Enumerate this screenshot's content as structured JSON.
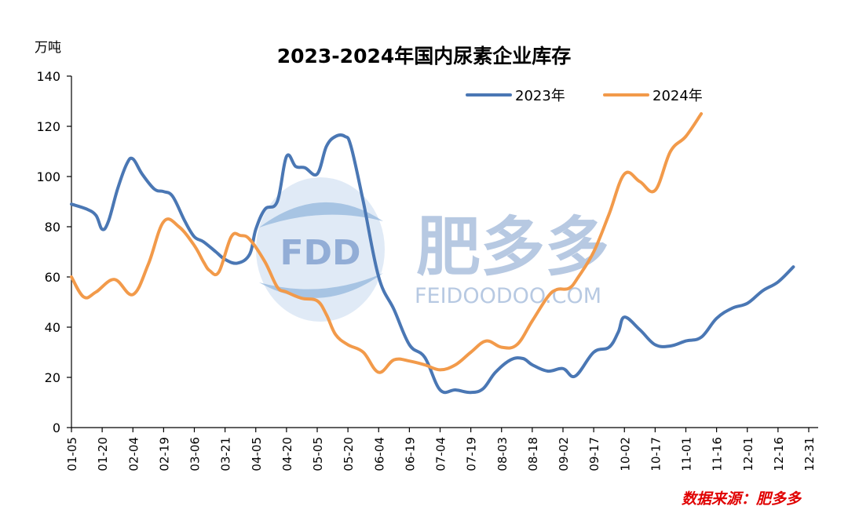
{
  "chart_data": {
    "type": "line",
    "title": "2023-2024年国内尿素企业库存",
    "ylabel": "万吨",
    "ylim": [
      0,
      140
    ],
    "yticks": [
      0,
      20,
      40,
      60,
      80,
      100,
      120,
      140
    ],
    "x_tick_labels": [
      "01-05",
      "01-20",
      "02-04",
      "02-19",
      "03-06",
      "03-21",
      "04-05",
      "04-20",
      "05-05",
      "05-20",
      "06-04",
      "06-19",
      "07-04",
      "07-19",
      "08-03",
      "08-18",
      "09-02",
      "09-17",
      "10-02",
      "10-17",
      "11-01",
      "11-16",
      "12-01",
      "12-16",
      "12-31"
    ],
    "legend_position": "top-right",
    "grid": false,
    "series": [
      {
        "name": "2023年",
        "color": "#4a77b4",
        "points": [
          [
            0,
            89
          ],
          [
            0.5,
            87
          ],
          [
            0.8,
            84.5
          ],
          [
            1,
            79
          ],
          [
            1.2,
            82
          ],
          [
            1.5,
            95
          ],
          [
            1.8,
            105
          ],
          [
            2,
            107
          ],
          [
            2.3,
            101
          ],
          [
            2.7,
            95
          ],
          [
            3,
            94
          ],
          [
            3.3,
            92
          ],
          [
            3.7,
            82
          ],
          [
            4,
            76
          ],
          [
            4.3,
            74
          ],
          [
            4.7,
            70
          ],
          [
            5,
            67
          ],
          [
            5.4,
            65.5
          ],
          [
            5.8,
            69
          ],
          [
            6,
            79
          ],
          [
            6.3,
            87
          ],
          [
            6.7,
            90
          ],
          [
            7,
            108
          ],
          [
            7.3,
            104
          ],
          [
            7.6,
            103.5
          ],
          [
            8,
            101
          ],
          [
            8.3,
            112
          ],
          [
            8.6,
            116
          ],
          [
            8.9,
            116
          ],
          [
            9.1,
            112
          ],
          [
            9.5,
            90
          ],
          [
            10,
            60
          ],
          [
            10.5,
            47
          ],
          [
            11,
            33
          ],
          [
            11.5,
            28
          ],
          [
            12,
            15
          ],
          [
            12.5,
            15
          ],
          [
            13,
            14
          ],
          [
            13.4,
            15.5
          ],
          [
            13.8,
            22
          ],
          [
            14.3,
            27
          ],
          [
            14.7,
            27.5
          ],
          [
            15,
            25
          ],
          [
            15.5,
            22.5
          ],
          [
            16,
            23.5
          ],
          [
            16.4,
            20.5
          ],
          [
            17,
            30
          ],
          [
            17.5,
            32
          ],
          [
            17.8,
            38
          ],
          [
            18,
            44
          ],
          [
            18.5,
            39
          ],
          [
            19,
            33
          ],
          [
            19.5,
            32.5
          ],
          [
            20,
            34.5
          ],
          [
            20.5,
            36
          ],
          [
            21,
            43.5
          ],
          [
            21.5,
            47.5
          ],
          [
            22,
            49.5
          ],
          [
            22.5,
            54.5
          ],
          [
            23,
            58
          ],
          [
            23.5,
            64
          ]
        ]
      },
      {
        "name": "2024年",
        "color": "#f29a4a",
        "points": [
          [
            0,
            60
          ],
          [
            0.4,
            52
          ],
          [
            0.8,
            54
          ],
          [
            1.4,
            59
          ],
          [
            2,
            53
          ],
          [
            2.5,
            65
          ],
          [
            3,
            82
          ],
          [
            3.5,
            80
          ],
          [
            4,
            72.5
          ],
          [
            4.3,
            66
          ],
          [
            4.5,
            62.5
          ],
          [
            4.8,
            62
          ],
          [
            5.2,
            76
          ],
          [
            5.5,
            76.5
          ],
          [
            5.8,
            75
          ],
          [
            6.3,
            66
          ],
          [
            6.7,
            56
          ],
          [
            7,
            54
          ],
          [
            7.5,
            51.5
          ],
          [
            8,
            50.5
          ],
          [
            8.3,
            45
          ],
          [
            8.6,
            37
          ],
          [
            9,
            33
          ],
          [
            9.5,
            30
          ],
          [
            10,
            22
          ],
          [
            10.5,
            27
          ],
          [
            11,
            26.5
          ],
          [
            11.5,
            25
          ],
          [
            12,
            23
          ],
          [
            12.5,
            25
          ],
          [
            13,
            30
          ],
          [
            13.5,
            34.5
          ],
          [
            14,
            32
          ],
          [
            14.5,
            33
          ],
          [
            15,
            42.5
          ],
          [
            15.5,
            52
          ],
          [
            15.8,
            55
          ],
          [
            16.2,
            55.5
          ],
          [
            16.5,
            60
          ],
          [
            17,
            70
          ],
          [
            17.5,
            85
          ],
          [
            18,
            101
          ],
          [
            18.5,
            98
          ],
          [
            19,
            94.5
          ],
          [
            19.5,
            110
          ],
          [
            20,
            116
          ],
          [
            20.5,
            125
          ]
        ]
      }
    ]
  },
  "watermark": {
    "logo_text": "FDD",
    "brand": "肥多多",
    "site": "FEIDOODOO.COM"
  },
  "source_text": "数据来源：肥多多",
  "colors": {
    "series_2023": "#4a77b4",
    "series_2024": "#f29a4a",
    "source_red": "#e00000",
    "watermark_blue": "#9fb7d9"
  }
}
